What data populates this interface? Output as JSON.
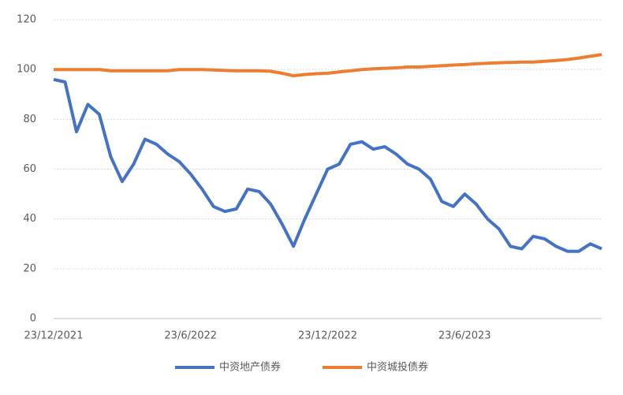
{
  "chart_data": {
    "type": "line",
    "categories": [
      "23/12/2021",
      null,
      null,
      null,
      null,
      null,
      null,
      null,
      null,
      null,
      null,
      null,
      "23/6/2022",
      null,
      null,
      null,
      null,
      null,
      null,
      null,
      null,
      null,
      null,
      null,
      "23/12/2022",
      null,
      null,
      null,
      null,
      null,
      null,
      null,
      null,
      null,
      null,
      null,
      "23/6/2023",
      null,
      null,
      null,
      null,
      null,
      null,
      null,
      null,
      null,
      null,
      null,
      null
    ],
    "series": [
      {
        "name": "中资地产债券",
        "color": "#4472c4",
        "values": [
          96,
          95,
          75,
          86,
          82,
          65,
          55,
          62,
          72,
          70,
          66,
          63,
          58,
          52,
          45,
          43,
          44,
          52,
          51,
          46,
          38,
          29,
          40,
          50,
          60,
          62,
          70,
          71,
          68,
          69,
          66,
          62,
          60,
          56,
          47,
          45,
          50,
          46,
          40,
          36,
          29,
          28,
          33,
          32,
          29,
          27,
          27,
          30,
          28
        ]
      },
      {
        "name": "中资城投债券",
        "color": "#ed7d31",
        "values": [
          100,
          100,
          100,
          100,
          100,
          99.5,
          99.5,
          99.5,
          99.5,
          99.5,
          99.5,
          100,
          100,
          100,
          99.8,
          99.6,
          99.5,
          99.5,
          99.5,
          99.3,
          98.5,
          97.5,
          98,
          98.3,
          98.5,
          99,
          99.5,
          100,
          100.3,
          100.5,
          100.7,
          101,
          101,
          101.3,
          101.5,
          101.8,
          102,
          102.3,
          102.5,
          102.7,
          102.8,
          103,
          103,
          103.3,
          103.6,
          104,
          104.6,
          105.3,
          106
        ]
      }
    ],
    "ylim": [
      0,
      120
    ],
    "yticks": [
      0,
      20,
      40,
      60,
      80,
      100,
      120
    ],
    "grid": true
  }
}
